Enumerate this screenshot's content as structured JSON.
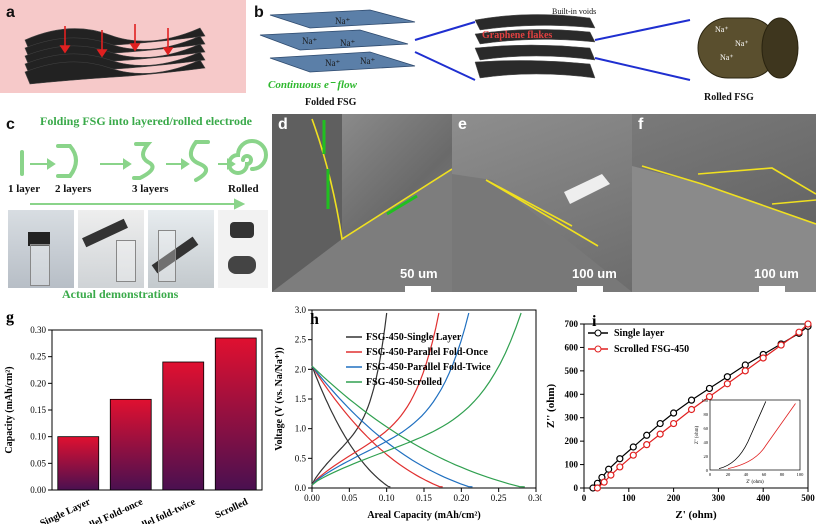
{
  "panels": {
    "a": {
      "label": "a"
    },
    "b": {
      "label": "b",
      "ion": "Na⁺",
      "electron": "e⁻",
      "flow": "Continuous e⁻ flow",
      "folded": "Folded FSG",
      "voids": "Built-in voids",
      "flakes": "Graphene flakes",
      "rolled": "Rolled FSG"
    },
    "c": {
      "label": "c",
      "title": "Folding FSG into layered/rolled electrode",
      "steps": [
        "1 layer",
        "2 layers",
        "3 layers",
        "Rolled"
      ],
      "demo": "Actual demonstrations"
    },
    "d": {
      "label": "d",
      "scale": "50 um"
    },
    "e": {
      "label": "e",
      "scale": "100 um"
    },
    "f": {
      "label": "f",
      "scale": "100 um"
    }
  },
  "chart_data": [
    {
      "panel": "g",
      "type": "bar",
      "ylabel": "Capacity (mAh/cm²)",
      "categories": [
        "Single Layer",
        "Parallel Fold-once",
        "Parallel fold-twice",
        "Scrolled"
      ],
      "values": [
        0.1,
        0.17,
        0.24,
        0.285
      ],
      "ylim": [
        0,
        0.3
      ],
      "yticks": [
        "0.00",
        "0.05",
        "0.10",
        "0.15",
        "0.20",
        "0.25",
        "0.30"
      ]
    },
    {
      "panel": "h",
      "type": "line",
      "xlabel": "Areal Capacity (mAh/cm²)",
      "ylabel": "Voltage (V (vs. Na/Na⁺))",
      "xlim": [
        0,
        0.3
      ],
      "ylim": [
        0,
        3.0
      ],
      "xticks": [
        "0.00",
        "0.05",
        "0.10",
        "0.15",
        "0.20",
        "0.25",
        "0.30"
      ],
      "yticks": [
        "0.0",
        "0.5",
        "1.0",
        "1.5",
        "2.0",
        "2.5",
        "3.0"
      ],
      "series": [
        {
          "name": "FSG-450-Single Layer",
          "color": "#333333",
          "discharge_end": 0.105,
          "charge_end": 0.1
        },
        {
          "name": "FSG-450-Parallel Fold-Once",
          "color": "#e03030",
          "discharge_end": 0.175,
          "charge_end": 0.17
        },
        {
          "name": "FSG-450-Parallel Fold-Twice",
          "color": "#2070c0",
          "discharge_end": 0.215,
          "charge_end": 0.21
        },
        {
          "name": "FSG-450-Scrolled",
          "color": "#30a050",
          "discharge_end": 0.285,
          "charge_end": 0.28
        }
      ]
    },
    {
      "panel": "i",
      "type": "scatter",
      "xlabel": "Z' (ohm)",
      "ylabel": "Z'' (ohm)",
      "xlim": [
        0,
        500
      ],
      "ylim": [
        0,
        700
      ],
      "xticks": [
        "0",
        "100",
        "200",
        "300",
        "400",
        "500"
      ],
      "yticks": [
        "0",
        "100",
        "200",
        "300",
        "400",
        "500",
        "600",
        "700"
      ],
      "series": [
        {
          "name": "Single layer",
          "color": "#000000",
          "x": [
            20,
            30,
            40,
            55,
            80,
            110,
            140,
            170,
            200,
            240,
            280,
            320,
            360,
            400,
            440,
            480,
            500
          ],
          "y": [
            0,
            20,
            45,
            80,
            125,
            175,
            225,
            275,
            320,
            375,
            425,
            475,
            525,
            570,
            615,
            660,
            690
          ]
        },
        {
          "name": "Scrolled FSG-450",
          "color": "#e02020",
          "x": [
            30,
            45,
            60,
            80,
            110,
            140,
            170,
            200,
            240,
            280,
            320,
            360,
            400,
            440,
            480,
            500
          ],
          "y": [
            0,
            25,
            55,
            90,
            140,
            185,
            230,
            275,
            335,
            390,
            445,
            500,
            555,
            610,
            665,
            700
          ]
        }
      ],
      "inset": {
        "xlabel": "Z' (ohm)",
        "ylabel": "Z'' (ohm)",
        "xticks": [
          "0",
          "20",
          "40",
          "60",
          "80",
          "100"
        ],
        "yticks": [
          "0",
          "20",
          "40",
          "60",
          "80",
          "100"
        ]
      }
    }
  ]
}
